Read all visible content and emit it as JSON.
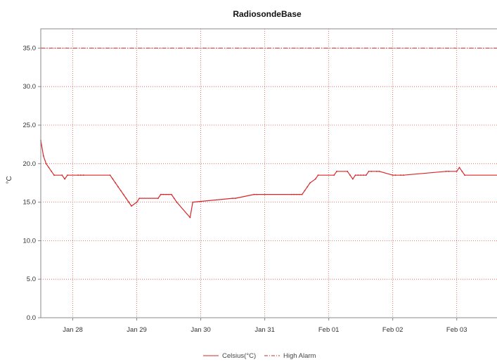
{
  "chart_data": {
    "type": "line",
    "title": "RadiosondeBase",
    "xlabel": "",
    "ylabel": "°C",
    "ylim": [
      0,
      37.5
    ],
    "xlim": [
      "2024-01-27T12:00",
      "2024-02-03T18:00"
    ],
    "y_ticks": [
      "0.0",
      "5.0",
      "10.0",
      "15.0",
      "20.0",
      "25.0",
      "30.0",
      "35.0"
    ],
    "x_ticks": [
      {
        "date": "2024-01-28",
        "label": "Jan 28"
      },
      {
        "date": "2024-01-29",
        "label": "Jan 29"
      },
      {
        "date": "2024-01-30",
        "label": "Jan 30"
      },
      {
        "date": "2024-01-31",
        "label": "Jan 31"
      },
      {
        "date": "2024-02-01",
        "label": "Feb 01"
      },
      {
        "date": "2024-02-02",
        "label": "Feb 02"
      },
      {
        "date": "2024-02-03",
        "label": "Feb 03"
      }
    ],
    "grid": true,
    "legend_position": "bottom-center",
    "colors": {
      "series": "#d62728",
      "alarm": "#d62728",
      "grid": "#d9534f"
    },
    "series": [
      {
        "name": "Celsius(°C)",
        "style": "solid",
        "x": [
          "2024-01-27T12:00",
          "2024-01-27T13:00",
          "2024-01-27T14:00",
          "2024-01-27T15:00",
          "2024-01-27T16:00",
          "2024-01-27T17:00",
          "2024-01-27T20:00",
          "2024-01-27T21:00",
          "2024-01-27T22:00",
          "2024-01-28T02:00",
          "2024-01-28T03:00",
          "2024-01-28T04:00",
          "2024-01-28T14:00",
          "2024-01-28T15:00",
          "2024-01-28T16:00",
          "2024-01-28T17:00",
          "2024-01-28T18:00",
          "2024-01-28T19:00",
          "2024-01-28T20:00",
          "2024-01-28T21:00",
          "2024-01-28T22:00",
          "2024-01-29T00:00",
          "2024-01-29T01:00",
          "2024-01-29T08:00",
          "2024-01-29T09:00",
          "2024-01-29T10:00",
          "2024-01-29T11:00",
          "2024-01-29T12:00",
          "2024-01-29T13:00",
          "2024-01-29T14:00",
          "2024-01-29T15:00",
          "2024-01-29T20:00",
          "2024-01-29T21:00",
          "2024-01-30T12:00",
          "2024-01-30T13:00",
          "2024-01-30T20:00",
          "2024-01-30T21:00",
          "2024-01-31T10:00",
          "2024-01-31T11:00",
          "2024-01-31T12:00",
          "2024-01-31T13:00",
          "2024-01-31T14:00",
          "2024-01-31T15:00",
          "2024-01-31T16:00",
          "2024-01-31T17:00",
          "2024-01-31T19:00",
          "2024-01-31T20:00",
          "2024-02-01T02:00",
          "2024-02-01T03:00",
          "2024-02-01T07:00",
          "2024-02-01T08:00",
          "2024-02-01T09:00",
          "2024-02-01T10:00",
          "2024-02-01T11:00",
          "2024-02-01T12:00",
          "2024-02-01T13:00",
          "2024-02-01T14:00",
          "2024-02-01T15:00",
          "2024-02-01T16:00",
          "2024-02-01T18:00",
          "2024-02-01T19:00",
          "2024-02-02T00:00",
          "2024-02-02T01:00",
          "2024-02-02T03:00",
          "2024-02-02T04:00",
          "2024-02-02T20:00",
          "2024-02-02T21:00",
          "2024-02-03T00:00",
          "2024-02-03T01:00",
          "2024-02-03T02:00",
          "2024-02-03T03:00",
          "2024-02-03T18:00"
        ],
        "y": [
          23.0,
          21.0,
          20.0,
          19.5,
          19.0,
          18.5,
          18.5,
          18.0,
          18.5,
          18.5,
          18.5,
          18.5,
          18.5,
          18.0,
          17.5,
          17.0,
          16.5,
          16.0,
          15.5,
          15.0,
          14.5,
          15.0,
          15.5,
          15.5,
          16.0,
          16.0,
          16.0,
          16.0,
          16.0,
          15.5,
          15.0,
          13.0,
          15.0,
          15.5,
          15.5,
          16.0,
          16.0,
          16.0,
          16.0,
          16.0,
          16.0,
          16.0,
          16.5,
          17.0,
          17.5,
          18.0,
          18.5,
          18.5,
          19.0,
          19.0,
          18.5,
          18.0,
          18.5,
          18.5,
          18.5,
          18.5,
          18.5,
          19.0,
          19.0,
          19.0,
          19.0,
          18.5,
          18.5,
          18.5,
          18.5,
          19.0,
          19.0,
          19.0,
          19.5,
          19.0,
          18.5,
          18.5
        ]
      },
      {
        "name": "High Alarm",
        "style": "dash-dot",
        "y_constant": 35.0
      }
    ]
  }
}
